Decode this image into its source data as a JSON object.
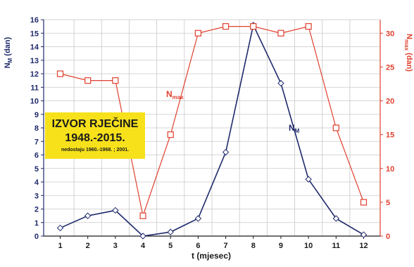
{
  "chart_data": {
    "type": "line",
    "x": [
      1,
      2,
      3,
      4,
      5,
      6,
      7,
      8,
      9,
      10,
      11,
      12
    ],
    "xlabel": "t (mjesec)",
    "y_left": {
      "label": "Nₘ (dan)",
      "label_main": "N",
      "label_sub": "M",
      "label_suffix": " (dan)",
      "lim": [
        0,
        16
      ],
      "ticks": [
        0,
        1,
        2,
        3,
        4,
        5,
        6,
        7,
        8,
        9,
        10,
        11,
        12,
        13,
        14,
        15,
        16
      ]
    },
    "y_right": {
      "label": "Nₘₐₓ (dan)",
      "label_main": "N",
      "label_sub": "max",
      "label_suffix": " (dan)",
      "lim": [
        0,
        32
      ],
      "ticks": [
        0,
        5,
        10,
        15,
        20,
        25,
        30
      ]
    },
    "series": [
      {
        "name": "N",
        "name_sub": "M",
        "axis": "left",
        "color": "#1f2a6b",
        "marker": "diamond",
        "values": [
          0.6,
          1.5,
          1.9,
          0.0,
          0.3,
          1.3,
          6.2,
          15.6,
          11.3,
          4.2,
          1.3,
          0.1
        ]
      },
      {
        "name": "N",
        "name_sub": "max",
        "axis": "right",
        "color": "#e0402f",
        "marker": "square",
        "values": [
          24,
          23,
          23,
          3,
          15,
          30,
          31,
          31,
          30,
          31,
          16,
          5
        ]
      }
    ],
    "grid": true
  },
  "badge": {
    "title_line1": "IZVOR RJEČINE",
    "title_line2": "1948.-2015.",
    "note": "nedostaju 1960.-1968. ; 2001.",
    "background": "#f7e11b"
  },
  "colors": {
    "left_axis": "#1f2a6b",
    "right_axis": "#e0402f",
    "grid": "#c9c9c9"
  }
}
